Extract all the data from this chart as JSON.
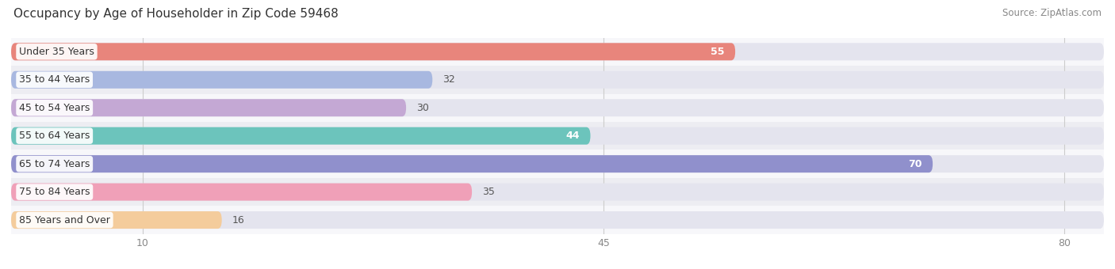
{
  "title": "Occupancy by Age of Householder in Zip Code 59468",
  "source": "Source: ZipAtlas.com",
  "categories": [
    "Under 35 Years",
    "35 to 44 Years",
    "45 to 54 Years",
    "55 to 64 Years",
    "65 to 74 Years",
    "75 to 84 Years",
    "85 Years and Over"
  ],
  "values": [
    55,
    32,
    30,
    44,
    70,
    35,
    16
  ],
  "bar_colors": [
    "#e8857c",
    "#a8b8e0",
    "#c4a8d4",
    "#6cc4bc",
    "#9090cc",
    "#f0a0b8",
    "#f4cc9c"
  ],
  "bar_bg_color": "#e4e4ee",
  "xlim": [
    0,
    83
  ],
  "xticks": [
    10,
    45,
    80
  ],
  "title_fontsize": 11,
  "source_fontsize": 8.5,
  "label_fontsize": 9,
  "value_fontsize": 9,
  "bar_height": 0.62,
  "bg_color": "#ffffff",
  "row_bg_colors": [
    "#f7f7fa",
    "#ededf2"
  ]
}
